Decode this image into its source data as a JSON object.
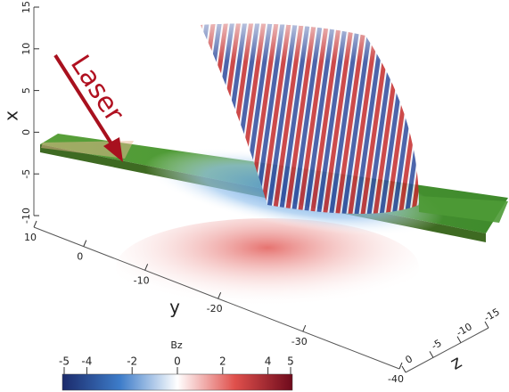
{
  "chart_data": {
    "type": "volume",
    "annotation": "Laser",
    "x_label": "x",
    "xlim": [
      -10,
      15
    ],
    "xticks": [
      -10,
      -5,
      0,
      5,
      10,
      15
    ],
    "y_label": "y",
    "ylim": [
      10,
      -40
    ],
    "yticks": [
      10,
      0,
      -10,
      -20,
      -30,
      -40
    ],
    "z_label": "z",
    "zlim": [
      0,
      -15
    ],
    "zticks": [
      0,
      -5,
      -10,
      -15
    ],
    "colorbar": {
      "title": "Bz",
      "lim": [
        -5,
        5
      ],
      "ticks": [
        -5,
        -4,
        -2,
        0,
        2,
        4,
        5
      ],
      "colors": [
        "#1b2a6b",
        "#3d7cc9",
        "#ffffff",
        "#e0504c",
        "#6e0a1c"
      ]
    }
  }
}
